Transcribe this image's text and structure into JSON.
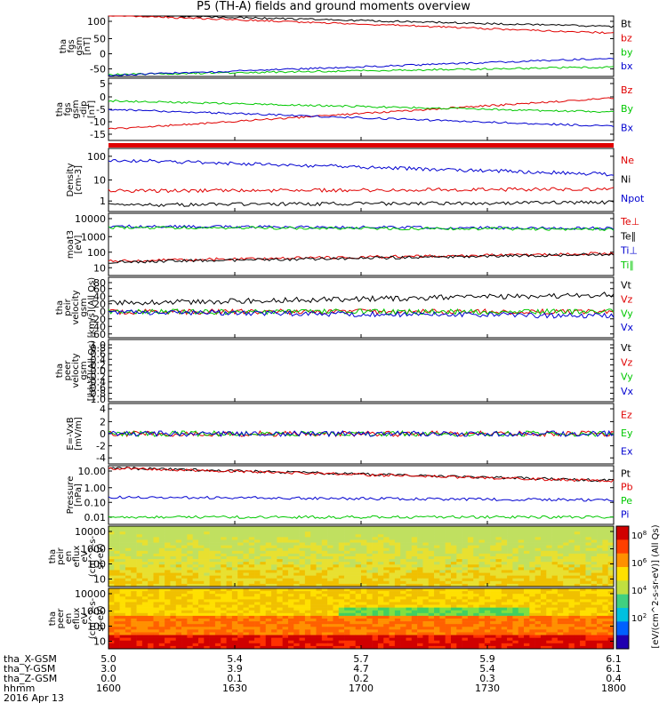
{
  "title": "P5 (TH-A) fields and ground moments overview",
  "colors": {
    "black": "#000000",
    "red": "#e00000",
    "green": "#00c800",
    "blue": "#0000d0"
  },
  "chart_data": [
    {
      "type": "line",
      "id": "fgs_gsm",
      "ylabel_lines": [
        "tha",
        "fgs",
        "gsm",
        "[nT]"
      ],
      "ylim": [
        -60,
        100
      ],
      "yticks": [
        "100",
        "50",
        "0",
        "-50"
      ],
      "series": [
        {
          "name": "Bt",
          "color": "black",
          "start": 104,
          "end": 72
        },
        {
          "name": "bz",
          "color": "red",
          "start": 102,
          "end": 55
        },
        {
          "name": "by",
          "color": "green",
          "start": -55,
          "end": -35
        },
        {
          "name": "bx",
          "color": "blue",
          "start": -57,
          "end": -12
        }
      ]
    },
    {
      "type": "line",
      "id": "fgs_gsm_dipole",
      "ylabel_lines": [
        "tha",
        "fgs",
        "gsm",
        "-dip",
        "[nT]"
      ],
      "ylim": [
        -17,
        5
      ],
      "yticks": [
        "5",
        "0",
        "-5",
        "-10",
        "-15"
      ],
      "series": [
        {
          "name": "Bz",
          "color": "red",
          "start": -13,
          "end": -2
        },
        {
          "name": "By",
          "color": "green",
          "start": -3,
          "end": -7
        },
        {
          "name": "Bx",
          "color": "blue",
          "start": -6,
          "end": -12
        }
      ]
    },
    {
      "type": "line",
      "id": "density",
      "log": true,
      "ylabel_lines": [
        "Density",
        "[cm-3]"
      ],
      "ylim": [
        0.7,
        300
      ],
      "yticks": [
        "100",
        "10",
        "1"
      ],
      "series": [
        {
          "name": "Ne",
          "color": "red",
          "start": 5,
          "end": 6
        },
        {
          "name": "Ni",
          "color": "black",
          "start": 1.3,
          "end": 1.7
        },
        {
          "name": "Npot",
          "color": "blue",
          "start": 100,
          "end": 25
        }
      ]
    },
    {
      "type": "line",
      "id": "temperature",
      "log": true,
      "ylabel_lines": [
        "moat3",
        "[eV]"
      ],
      "ylim": [
        7,
        12000
      ],
      "yticks": [
        "10000",
        "1000",
        "100",
        "10"
      ],
      "series": [
        {
          "name": "Te⊥",
          "color": "red",
          "start": 40,
          "end": 100
        },
        {
          "name": "Te∥",
          "color": "black",
          "start": 35,
          "end": 90
        },
        {
          "name": "Ti⊥",
          "color": "blue",
          "start": 2500,
          "end": 2000
        },
        {
          "name": "Ti∥",
          "color": "green",
          "start": 2200,
          "end": 1800
        }
      ]
    },
    {
      "type": "line",
      "id": "peir_velocity",
      "ylabel_lines": [
        "tha",
        "peir",
        "velocity",
        "gsm",
        "[km/s](All Qs)"
      ],
      "ylim": [
        -60,
        80
      ],
      "yticks": [
        "80",
        "60",
        "40",
        "20",
        "0",
        "-20",
        "-40",
        "-60"
      ],
      "series": [
        {
          "name": "Vt",
          "color": "black",
          "start": 20,
          "end": 40
        },
        {
          "name": "Vz",
          "color": "red",
          "start": 0,
          "end": 0
        },
        {
          "name": "Vy",
          "color": "green",
          "start": 0,
          "end": 0
        },
        {
          "name": "Vx",
          "color": "blue",
          "start": 0,
          "end": -10
        }
      ]
    },
    {
      "type": "line",
      "id": "peer_velocity",
      "ylabel_lines": [
        "tha",
        "peer",
        "velocity",
        "gsm",
        "[km/s](All Qs)"
      ],
      "ylim": [
        -1,
        1
      ],
      "yticks": [
        "1.0",
        "0.8",
        "0.6",
        "0.4",
        "0.2",
        "0.0",
        "-0.2",
        "-0.4",
        "-0.6",
        "-0.8",
        "-1.0"
      ],
      "series": [
        {
          "name": "Vt",
          "color": "black"
        },
        {
          "name": "Vz",
          "color": "red"
        },
        {
          "name": "Vy",
          "color": "green"
        },
        {
          "name": "Vx",
          "color": "blue"
        }
      ]
    },
    {
      "type": "line",
      "id": "efield",
      "ylabel_lines": [
        "E=-VxB",
        "[mV/m]"
      ],
      "ylim": [
        -4,
        4
      ],
      "yticks": [
        "4",
        "2",
        "0",
        "-2",
        "-4"
      ],
      "series": [
        {
          "name": "Ez",
          "color": "red",
          "start": 0,
          "end": 0
        },
        {
          "name": "Ey",
          "color": "green",
          "start": 0,
          "end": 0
        },
        {
          "name": "Ex",
          "color": "blue",
          "start": 0,
          "end": 0
        }
      ]
    },
    {
      "type": "line",
      "id": "pressure",
      "log": true,
      "ylabel_lines": [
        "Pressure",
        "[nPa]"
      ],
      "ylim": [
        0.008,
        13
      ],
      "yticks": [
        "10.00",
        "1.00",
        "0.10",
        "0.01"
      ],
      "series": [
        {
          "name": "Pt",
          "color": "black",
          "start": 10,
          "end": 2
        },
        {
          "name": "Pb",
          "color": "red",
          "start": 9.5,
          "end": 1.9
        },
        {
          "name": "Pe",
          "color": "green",
          "start": 0.02,
          "end": 0.02
        },
        {
          "name": "Pi",
          "color": "blue",
          "start": 0.25,
          "end": 0.17
        }
      ]
    },
    {
      "type": "heatmap",
      "id": "peir_en_eflux",
      "ylabel_lines": [
        "tha",
        "peir",
        "en",
        "eflux",
        "eV",
        "(cm^2-s-",
        "sr-eV)"
      ],
      "ylim": [
        7,
        20000
      ],
      "yticks": [
        "10000",
        "1000",
        "100",
        "10"
      ]
    },
    {
      "type": "heatmap",
      "id": "peer_en_eflux",
      "ylabel_lines": [
        "tha",
        "peer",
        "en",
        "eflux",
        "eV",
        "(cm^2-s-",
        "sr-eV)"
      ],
      "ylim": [
        7,
        20000
      ],
      "yticks": [
        "10000",
        "1000",
        "100",
        "10"
      ]
    }
  ],
  "colorbar_ticks": [
    "10^8",
    "10^6",
    "10^4",
    "10^2"
  ],
  "colorbar_label": "[eV/(cm^2-s-sr-eV)] (All Qs)",
  "bar_strip": {
    "label": ""
  },
  "xaxis": {
    "rows": [
      {
        "label": "tha_X-GSM",
        "values": [
          "5.0",
          "5.4",
          "5.7",
          "5.9",
          "6.1"
        ]
      },
      {
        "label": "tha_Y-GSM",
        "values": [
          "3.0",
          "3.9",
          "4.7",
          "5.4",
          "6.1"
        ]
      },
      {
        "label": "tha_Z-GSM",
        "values": [
          "0.0",
          "0.1",
          "0.2",
          "0.3",
          "0.4"
        ]
      },
      {
        "label": "hhmm",
        "values": [
          "1600",
          "1630",
          "1700",
          "1730",
          "1800"
        ]
      }
    ],
    "date": "2016 Apr 13"
  }
}
